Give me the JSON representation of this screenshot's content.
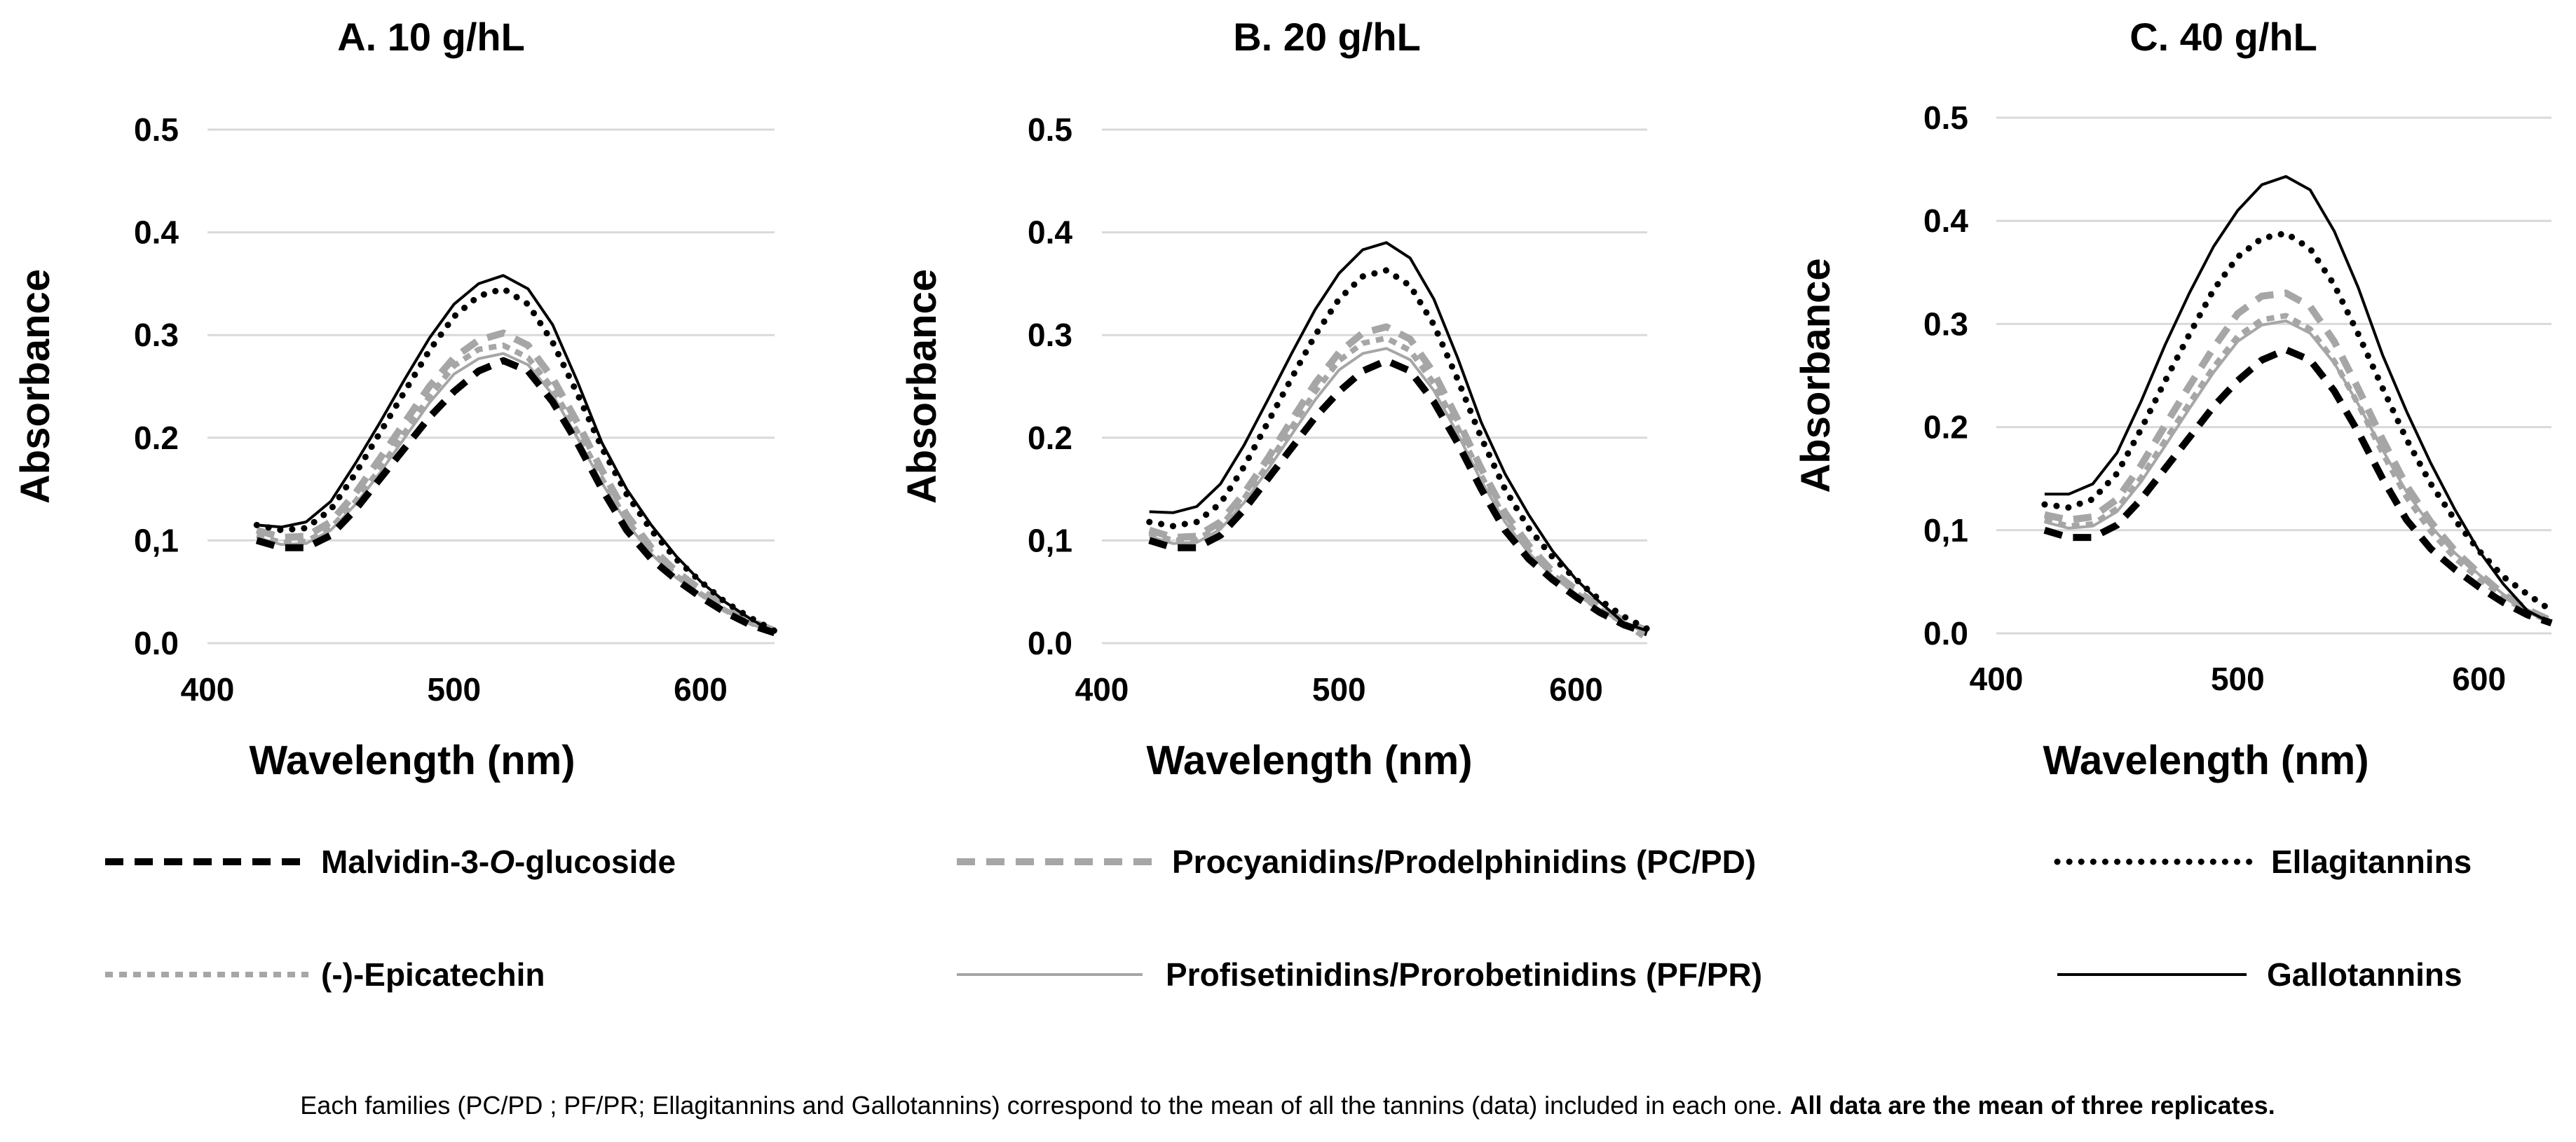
{
  "chart_data": [
    {
      "type": "line",
      "title": "A. 10 g/hL",
      "xlabel": "Wavelength (nm)",
      "ylabel": "Absorbance",
      "xlim": [
        400,
        630
      ],
      "ylim": [
        0.0,
        0.5
      ],
      "x_ticks": [
        "400",
        "500",
        "600"
      ],
      "y_ticks": [
        "0.0",
        "0,1",
        "0.2",
        "0.3",
        "0.4",
        "0.5"
      ],
      "grid": true,
      "series": [
        {
          "name": "Malvidin-3-O-glucoside",
          "x": [
            420,
            430,
            440,
            450,
            460,
            470,
            480,
            490,
            500,
            510,
            520,
            530,
            540,
            550,
            560,
            570,
            580,
            590,
            600,
            610,
            620,
            630
          ],
          "y": [
            0.1,
            0.093,
            0.093,
            0.105,
            0.13,
            0.16,
            0.19,
            0.22,
            0.245,
            0.265,
            0.275,
            0.265,
            0.235,
            0.195,
            0.15,
            0.11,
            0.082,
            0.062,
            0.045,
            0.03,
            0.018,
            0.01
          ]
        },
        {
          "name": "Procyanidins/Prodelphinidins (PC/PD)",
          "x": [
            420,
            430,
            440,
            450,
            460,
            470,
            480,
            490,
            500,
            510,
            520,
            530,
            540,
            550,
            560,
            570,
            580,
            590,
            600,
            610,
            620,
            630
          ],
          "y": [
            0.11,
            0.103,
            0.104,
            0.118,
            0.146,
            0.18,
            0.215,
            0.25,
            0.278,
            0.295,
            0.302,
            0.29,
            0.258,
            0.215,
            0.168,
            0.125,
            0.093,
            0.07,
            0.052,
            0.035,
            0.022,
            0.012
          ]
        },
        {
          "name": "Ellagitannins",
          "x": [
            420,
            430,
            440,
            450,
            460,
            470,
            480,
            490,
            500,
            510,
            520,
            530,
            540,
            550,
            560,
            570,
            580,
            590,
            600,
            610,
            620,
            630
          ],
          "y": [
            0.115,
            0.11,
            0.112,
            0.13,
            0.165,
            0.205,
            0.245,
            0.285,
            0.318,
            0.338,
            0.345,
            0.33,
            0.293,
            0.243,
            0.19,
            0.145,
            0.11,
            0.082,
            0.06,
            0.04,
            0.025,
            0.012
          ]
        },
        {
          "name": "(-)-Epicatechin",
          "x": [
            420,
            430,
            440,
            450,
            460,
            470,
            480,
            490,
            500,
            510,
            520,
            530,
            540,
            550,
            560,
            570,
            580,
            590,
            600,
            610,
            620,
            630
          ],
          "y": [
            0.105,
            0.098,
            0.099,
            0.112,
            0.138,
            0.17,
            0.205,
            0.24,
            0.27,
            0.286,
            0.29,
            0.278,
            0.248,
            0.206,
            0.16,
            0.12,
            0.089,
            0.066,
            0.048,
            0.032,
            0.02,
            0.01
          ]
        },
        {
          "name": "Profisetinidins/Prorobetinidins (PF/PR)",
          "x": [
            420,
            430,
            440,
            450,
            460,
            470,
            480,
            490,
            500,
            510,
            520,
            530,
            540,
            550,
            560,
            570,
            580,
            590,
            600,
            610,
            620,
            630
          ],
          "y": [
            0.103,
            0.096,
            0.097,
            0.11,
            0.135,
            0.166,
            0.2,
            0.234,
            0.262,
            0.277,
            0.282,
            0.271,
            0.242,
            0.2,
            0.156,
            0.117,
            0.087,
            0.064,
            0.047,
            0.031,
            0.019,
            0.01
          ]
        },
        {
          "name": "Gallotannins",
          "x": [
            420,
            430,
            440,
            450,
            460,
            470,
            480,
            490,
            500,
            510,
            520,
            530,
            540,
            550,
            560,
            570,
            580,
            590,
            600,
            610,
            620,
            630
          ],
          "y": [
            0.115,
            0.113,
            0.118,
            0.138,
            0.175,
            0.215,
            0.257,
            0.297,
            0.33,
            0.35,
            0.358,
            0.345,
            0.31,
            0.255,
            0.195,
            0.15,
            0.115,
            0.085,
            0.06,
            0.04,
            0.024,
            0.01
          ]
        }
      ]
    },
    {
      "type": "line",
      "title": "B. 20 g/hL",
      "xlabel": "Wavelength (nm)",
      "ylabel": "Absorbance",
      "xlim": [
        400,
        630
      ],
      "ylim": [
        0.0,
        0.5
      ],
      "x_ticks": [
        "400",
        "500",
        "600"
      ],
      "y_ticks": [
        "0.0",
        "0,1",
        "0.2",
        "0.3",
        "0.4",
        "0.5"
      ],
      "grid": true,
      "series": [
        {
          "name": "Malvidin-3-O-glucoside",
          "x": [
            420,
            430,
            440,
            450,
            460,
            470,
            480,
            490,
            500,
            510,
            520,
            530,
            540,
            550,
            560,
            570,
            580,
            590,
            600,
            610,
            620,
            630
          ],
          "y": [
            0.1,
            0.093,
            0.093,
            0.105,
            0.13,
            0.16,
            0.19,
            0.22,
            0.245,
            0.265,
            0.275,
            0.265,
            0.235,
            0.195,
            0.15,
            0.11,
            0.082,
            0.062,
            0.045,
            0.03,
            0.018,
            0.01
          ]
        },
        {
          "name": "Procyanidins/Prodelphinidins (PC/PD)",
          "x": [
            420,
            430,
            440,
            450,
            460,
            470,
            480,
            490,
            500,
            510,
            520,
            530,
            540,
            550,
            560,
            570,
            580,
            590,
            600,
            610,
            620,
            630
          ],
          "y": [
            0.11,
            0.103,
            0.104,
            0.118,
            0.146,
            0.18,
            0.217,
            0.253,
            0.283,
            0.302,
            0.308,
            0.296,
            0.263,
            0.218,
            0.17,
            0.127,
            0.095,
            0.07,
            0.052,
            0.035,
            0.022,
            0.012
          ]
        },
        {
          "name": "Ellagitannins",
          "x": [
            420,
            430,
            440,
            450,
            460,
            470,
            480,
            490,
            500,
            510,
            520,
            530,
            540,
            550,
            560,
            570,
            580,
            590,
            600,
            610,
            620,
            630
          ],
          "y": [
            0.118,
            0.114,
            0.118,
            0.136,
            0.172,
            0.215,
            0.258,
            0.3,
            0.335,
            0.357,
            0.363,
            0.348,
            0.31,
            0.257,
            0.2,
            0.15,
            0.112,
            0.084,
            0.062,
            0.042,
            0.026,
            0.014
          ]
        },
        {
          "name": "(-)-Epicatechin",
          "x": [
            420,
            430,
            440,
            450,
            460,
            470,
            480,
            490,
            500,
            510,
            520,
            530,
            540,
            550,
            560,
            570,
            580,
            590,
            600,
            610,
            620,
            630
          ],
          "y": [
            0.107,
            0.1,
            0.101,
            0.114,
            0.141,
            0.174,
            0.21,
            0.245,
            0.275,
            0.292,
            0.297,
            0.285,
            0.253,
            0.21,
            0.163,
            0.122,
            0.09,
            0.067,
            0.049,
            0.033,
            0.02,
            0.004
          ]
        },
        {
          "name": "Profisetinidins/Prorobetinidins (PF/PR)",
          "x": [
            420,
            430,
            440,
            450,
            460,
            470,
            480,
            490,
            500,
            510,
            520,
            530,
            540,
            550,
            560,
            570,
            580,
            590,
            600,
            610,
            620,
            630
          ],
          "y": [
            0.104,
            0.097,
            0.098,
            0.111,
            0.137,
            0.169,
            0.203,
            0.237,
            0.266,
            0.282,
            0.287,
            0.276,
            0.246,
            0.204,
            0.158,
            0.118,
            0.088,
            0.065,
            0.048,
            0.032,
            0.02,
            0.01
          ]
        },
        {
          "name": "Gallotannins",
          "x": [
            420,
            430,
            440,
            450,
            460,
            470,
            480,
            490,
            500,
            510,
            520,
            530,
            540,
            550,
            560,
            570,
            580,
            590,
            600,
            610,
            620,
            630
          ],
          "y": [
            0.128,
            0.127,
            0.133,
            0.155,
            0.193,
            0.237,
            0.282,
            0.325,
            0.36,
            0.383,
            0.39,
            0.375,
            0.335,
            0.278,
            0.215,
            0.165,
            0.125,
            0.09,
            0.062,
            0.04,
            0.02,
            0.012
          ]
        }
      ]
    },
    {
      "type": "line",
      "title": "C. 40 g/hL",
      "xlabel": "Wavelength (nm)",
      "ylabel": "Absorbance",
      "xlim": [
        400,
        630
      ],
      "ylim": [
        0.0,
        0.5
      ],
      "x_ticks": [
        "400",
        "500",
        "600"
      ],
      "y_ticks": [
        "0.0",
        "0,1",
        "0.2",
        "0.3",
        "0.4",
        "0.5"
      ],
      "grid": true,
      "series": [
        {
          "name": "Malvidin-3-O-glucoside",
          "x": [
            420,
            430,
            440,
            450,
            460,
            470,
            480,
            490,
            500,
            510,
            520,
            530,
            540,
            550,
            560,
            570,
            580,
            590,
            600,
            610,
            620,
            630
          ],
          "y": [
            0.1,
            0.093,
            0.093,
            0.105,
            0.13,
            0.16,
            0.19,
            0.22,
            0.245,
            0.265,
            0.275,
            0.265,
            0.235,
            0.195,
            0.15,
            0.11,
            0.082,
            0.062,
            0.045,
            0.03,
            0.018,
            0.01
          ]
        },
        {
          "name": "Procyanidins/Prodelphinidins (PC/PD)",
          "x": [
            420,
            430,
            440,
            450,
            460,
            470,
            480,
            490,
            500,
            510,
            520,
            530,
            540,
            550,
            560,
            570,
            580,
            590,
            600,
            610,
            620,
            630
          ],
          "y": [
            0.115,
            0.11,
            0.113,
            0.13,
            0.163,
            0.202,
            0.24,
            0.277,
            0.31,
            0.327,
            0.33,
            0.317,
            0.283,
            0.237,
            0.188,
            0.143,
            0.108,
            0.08,
            0.058,
            0.038,
            0.023,
            0.012
          ]
        },
        {
          "name": "Ellagitannins",
          "x": [
            420,
            430,
            440,
            450,
            460,
            470,
            480,
            490,
            500,
            510,
            520,
            530,
            540,
            550,
            560,
            570,
            580,
            590,
            600,
            610,
            620,
            630
          ],
          "y": [
            0.125,
            0.122,
            0.13,
            0.155,
            0.198,
            0.245,
            0.29,
            0.333,
            0.365,
            0.383,
            0.388,
            0.373,
            0.338,
            0.29,
            0.238,
            0.188,
            0.145,
            0.11,
            0.08,
            0.055,
            0.038,
            0.022
          ]
        },
        {
          "name": "(-)-Epicatechin",
          "x": [
            420,
            430,
            440,
            450,
            460,
            470,
            480,
            490,
            500,
            510,
            520,
            530,
            540,
            550,
            560,
            570,
            580,
            590,
            600,
            610,
            620,
            630
          ],
          "y": [
            0.11,
            0.104,
            0.106,
            0.121,
            0.151,
            0.187,
            0.223,
            0.258,
            0.288,
            0.304,
            0.308,
            0.295,
            0.264,
            0.222,
            0.175,
            0.132,
            0.099,
            0.073,
            0.053,
            0.035,
            0.021,
            0.011
          ]
        },
        {
          "name": "Profisetinidins/Prorobetinidins (PF/PR)",
          "x": [
            420,
            430,
            440,
            450,
            460,
            470,
            480,
            490,
            500,
            510,
            520,
            530,
            540,
            550,
            560,
            570,
            580,
            590,
            600,
            610,
            620,
            630
          ],
          "y": [
            0.108,
            0.102,
            0.104,
            0.118,
            0.147,
            0.182,
            0.218,
            0.253,
            0.283,
            0.299,
            0.303,
            0.291,
            0.262,
            0.222,
            0.178,
            0.137,
            0.104,
            0.078,
            0.057,
            0.038,
            0.023,
            0.012
          ]
        },
        {
          "name": "Gallotannins",
          "x": [
            420,
            430,
            440,
            450,
            460,
            470,
            480,
            490,
            500,
            510,
            520,
            530,
            540,
            550,
            560,
            570,
            580,
            590,
            600,
            610,
            620,
            630
          ],
          "y": [
            0.135,
            0.135,
            0.145,
            0.175,
            0.225,
            0.28,
            0.33,
            0.375,
            0.41,
            0.435,
            0.443,
            0.43,
            0.39,
            0.335,
            0.27,
            0.215,
            0.165,
            0.12,
            0.08,
            0.048,
            0.022,
            0.01
          ]
        }
      ]
    }
  ],
  "legend": [
    {
      "label_pre": "Malvidin-3-",
      "label_italic": "O",
      "label_post": "-glucoside",
      "color": "#000000",
      "style": "long-dash"
    },
    {
      "label": "Procyanidins/Prodelphinidins (PC/PD)",
      "color": "#a6a6a6",
      "style": "long-dash"
    },
    {
      "label": "Ellagitannins",
      "color": "#000000",
      "style": "dotted"
    },
    {
      "label": "(-)-Epicatechin",
      "color": "#a6a6a6",
      "style": "short-dash"
    },
    {
      "label": "Profisetinidins/Prorobetinidins (PF/PR)",
      "color": "#a6a6a6",
      "style": "solid"
    },
    {
      "label": "Gallotannins",
      "color": "#000000",
      "style": "solid"
    }
  ],
  "caption": {
    "normal": "Each families (PC/PD ; PF/PR; Ellagitannins and Gallotannins) correspond to the mean of all the tannins (data) included in each one. ",
    "bold": "All data are the mean of three replicates."
  },
  "colors": {
    "black": "#000000",
    "grey": "#a6a6a6",
    "grid": "#d9d9d9"
  }
}
